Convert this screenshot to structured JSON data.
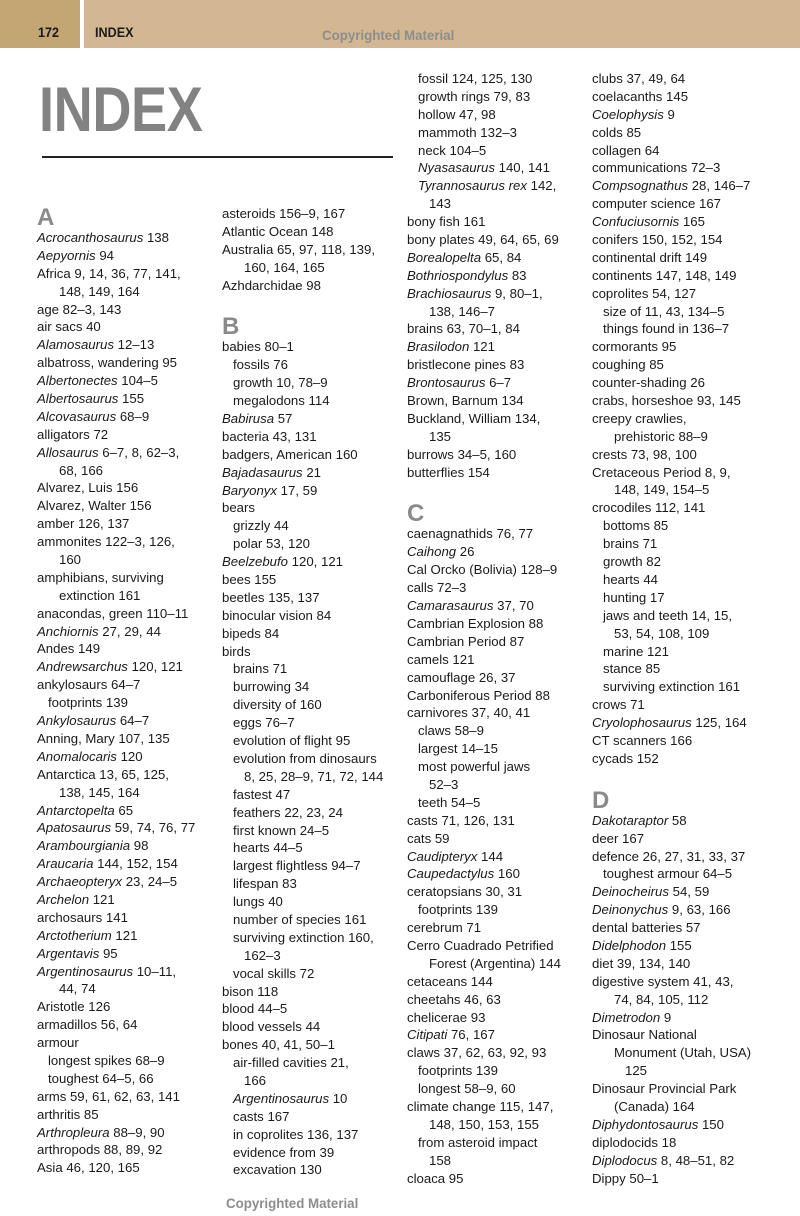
{
  "header": {
    "page_number": "172",
    "section": "INDEX",
    "watermark": "Copyrighted Material"
  },
  "title": "INDEX",
  "footer_watermark": "Copyrighted Material",
  "colors": {
    "band": "#d3b793",
    "band_left": "#c4a574",
    "title": "#828282",
    "letter": "#8a8a8a"
  },
  "columns": [
    {
      "lines": [
        {
          "letter": "A"
        },
        {
          "l": 0,
          "i": "Acrocanthosaurus",
          "t": " 138"
        },
        {
          "l": 0,
          "i": "Aepyornis",
          "t": " 94"
        },
        {
          "l": 0,
          "t": "Africa 9, 14, 36, 77, 141,"
        },
        {
          "l": 2,
          "t": "148, 149, 164"
        },
        {
          "l": 0,
          "t": "age 82–3, 143"
        },
        {
          "l": 0,
          "t": "air sacs 40"
        },
        {
          "l": 0,
          "i": "Alamosaurus",
          "t": " 12–13"
        },
        {
          "l": 0,
          "t": "albatross, wandering 95"
        },
        {
          "l": 0,
          "i": "Albertonectes",
          "t": " 104–5"
        },
        {
          "l": 0,
          "i": "Albertosaurus",
          "t": " 155"
        },
        {
          "l": 0,
          "i": "Alcovasaurus",
          "t": " 68–9"
        },
        {
          "l": 0,
          "t": "alligators 72"
        },
        {
          "l": 0,
          "i": "Allosaurus",
          "t": " 6–7, 8, 62–3,"
        },
        {
          "l": 2,
          "t": "68, 166"
        },
        {
          "l": 0,
          "t": "Alvarez, Luis 156"
        },
        {
          "l": 0,
          "t": "Alvarez, Walter 156"
        },
        {
          "l": 0,
          "t": "amber 126, 137"
        },
        {
          "l": 0,
          "t": "ammonites 122–3, 126,"
        },
        {
          "l": 2,
          "t": "160"
        },
        {
          "l": 0,
          "t": "amphibians, surviving"
        },
        {
          "l": 2,
          "t": "extinction 161"
        },
        {
          "l": 0,
          "t": "anacondas, green 110–11"
        },
        {
          "l": 0,
          "i": "Anchiornis",
          "t": " 27, 29, 44"
        },
        {
          "l": 0,
          "t": "Andes 149"
        },
        {
          "l": 0,
          "i": "Andrewsarchus",
          "t": " 120, 121"
        },
        {
          "l": 0,
          "t": "ankylosaurs 64–7"
        },
        {
          "l": 1,
          "t": "footprints 139"
        },
        {
          "l": 0,
          "i": "Ankylosaurus",
          "t": " 64–7"
        },
        {
          "l": 0,
          "t": "Anning, Mary 107, 135"
        },
        {
          "l": 0,
          "i": "Anomalocaris",
          "t": " 120"
        },
        {
          "l": 0,
          "t": "Antarctica 13, 65, 125,"
        },
        {
          "l": 2,
          "t": "138, 145, 164"
        },
        {
          "l": 0,
          "i": "Antarctopelta",
          "t": " 65"
        },
        {
          "l": 0,
          "i": "Apatosaurus",
          "t": " 59, 74, 76, 77"
        },
        {
          "l": 0,
          "i": "Arambourgiania",
          "t": " 98"
        },
        {
          "l": 0,
          "i": "Araucaria",
          "t": " 144, 152, 154"
        },
        {
          "l": 0,
          "i": "Archaeopteryx",
          "t": " 23, 24–5"
        },
        {
          "l": 0,
          "i": "Archelon",
          "t": " 121"
        },
        {
          "l": 0,
          "t": "archosaurs 141"
        },
        {
          "l": 0,
          "i": "Arctotherium",
          "t": " 121"
        },
        {
          "l": 0,
          "i": "Argentavis",
          "t": " 95"
        },
        {
          "l": 0,
          "i": "Argentinosaurus",
          "t": " 10–11,"
        },
        {
          "l": 2,
          "t": "44, 74"
        },
        {
          "l": 0,
          "t": "Aristotle 126"
        },
        {
          "l": 0,
          "t": "armadillos 56, 64"
        },
        {
          "l": 0,
          "t": "armour"
        },
        {
          "l": 1,
          "t": "longest spikes 68–9"
        },
        {
          "l": 1,
          "t": "toughest 64–5, 66"
        },
        {
          "l": 0,
          "t": "arms 59, 61, 62, 63, 141"
        },
        {
          "l": 0,
          "t": "arthritis 85"
        },
        {
          "l": 0,
          "i": "Arthropleura",
          "t": " 88–9, 90"
        },
        {
          "l": 0,
          "t": "arthropods 88, 89, 92"
        },
        {
          "l": 0,
          "t": "Asia 46, 120, 165"
        }
      ]
    },
    {
      "lines": [
        {
          "l": 0,
          "t": "asteroids 156–9, 167"
        },
        {
          "l": 0,
          "t": "Atlantic Ocean 148"
        },
        {
          "l": 0,
          "t": "Australia 65, 97, 118, 139,"
        },
        {
          "l": 2,
          "t": "160, 164, 165"
        },
        {
          "l": 0,
          "t": "Azhdarchidae 98"
        },
        {
          "letter": "B"
        },
        {
          "l": 0,
          "t": "babies 80–1"
        },
        {
          "l": 1,
          "t": "fossils 76"
        },
        {
          "l": 1,
          "t": "growth 10, 78–9"
        },
        {
          "l": 1,
          "t": "megalodons 114"
        },
        {
          "l": 0,
          "i": "Babirusa",
          "t": " 57"
        },
        {
          "l": 0,
          "t": "bacteria 43, 131"
        },
        {
          "l": 0,
          "t": "badgers, American 160"
        },
        {
          "l": 0,
          "i": "Bajadasaurus",
          "t": " 21"
        },
        {
          "l": 0,
          "i": "Baryonyx",
          "t": " 17, 59"
        },
        {
          "l": 0,
          "t": "bears"
        },
        {
          "l": 1,
          "t": "grizzly 44"
        },
        {
          "l": 1,
          "t": "polar 53, 120"
        },
        {
          "l": 0,
          "i": "Beelzebufo",
          "t": " 120, 121"
        },
        {
          "l": 0,
          "t": "bees 155"
        },
        {
          "l": 0,
          "t": "beetles 135, 137"
        },
        {
          "l": 0,
          "t": "binocular vision 84"
        },
        {
          "l": 0,
          "t": "bipeds 84"
        },
        {
          "l": 0,
          "t": "birds"
        },
        {
          "l": 1,
          "t": "brains 71"
        },
        {
          "l": 1,
          "t": "burrowing 34"
        },
        {
          "l": 1,
          "t": "diversity of 160"
        },
        {
          "l": 1,
          "t": "eggs 76–7"
        },
        {
          "l": 1,
          "t": "evolution of flight 95"
        },
        {
          "l": 1,
          "t": "evolution from dinosaurs"
        },
        {
          "l": 2,
          "t": "8, 25, 28–9, 71, 72, 144"
        },
        {
          "l": 1,
          "t": "fastest 47"
        },
        {
          "l": 1,
          "t": "feathers 22, 23, 24"
        },
        {
          "l": 1,
          "t": "first known 24–5"
        },
        {
          "l": 1,
          "t": "hearts 44–5"
        },
        {
          "l": 1,
          "t": "largest flightless 94–7"
        },
        {
          "l": 1,
          "t": "lifespan 83"
        },
        {
          "l": 1,
          "t": "lungs 40"
        },
        {
          "l": 1,
          "t": "number of species 161"
        },
        {
          "l": 1,
          "t": "surviving extinction 160,"
        },
        {
          "l": 2,
          "t": "162–3"
        },
        {
          "l": 1,
          "t": "vocal skills 72"
        },
        {
          "l": 0,
          "t": "bison 118"
        },
        {
          "l": 0,
          "t": "blood 44–5"
        },
        {
          "l": 0,
          "t": "blood vessels 44"
        },
        {
          "l": 0,
          "t": "bones 40, 41, 50–1"
        },
        {
          "l": 1,
          "t": "air-filled cavities 21,"
        },
        {
          "l": 2,
          "t": "166"
        },
        {
          "l": 1,
          "i": "Argentinosaurus",
          "t": " 10"
        },
        {
          "l": 1,
          "t": "casts 167"
        },
        {
          "l": 1,
          "t": "in coprolites 136, 137"
        },
        {
          "l": 1,
          "t": "evidence from 39"
        },
        {
          "l": 1,
          "t": "excavation 130"
        }
      ]
    },
    {
      "lines": [
        {
          "l": 1,
          "t": "fossil 124, 125, 130"
        },
        {
          "l": 1,
          "t": "growth rings 79, 83"
        },
        {
          "l": 1,
          "t": "hollow 47, 98"
        },
        {
          "l": 1,
          "t": "mammoth 132–3"
        },
        {
          "l": 1,
          "t": "neck 104–5"
        },
        {
          "l": 1,
          "i": "Nyasasaurus",
          "t": " 140, 141"
        },
        {
          "l": 1,
          "i": "Tyrannosaurus rex",
          "t": " 142,"
        },
        {
          "l": 2,
          "t": "143"
        },
        {
          "l": 0,
          "t": "bony fish 161"
        },
        {
          "l": 0,
          "t": "bony plates 49, 64, 65, 69"
        },
        {
          "l": 0,
          "i": "Borealopelta",
          "t": " 65, 84"
        },
        {
          "l": 0,
          "i": "Bothriospondylus",
          "t": " 83"
        },
        {
          "l": 0,
          "i": "Brachiosaurus",
          "t": " 9, 80–1,"
        },
        {
          "l": 2,
          "t": "138, 146–7"
        },
        {
          "l": 0,
          "t": "brains 63, 70–1, 84"
        },
        {
          "l": 0,
          "i": "Brasilodon",
          "t": " 121"
        },
        {
          "l": 0,
          "t": "bristlecone pines 83"
        },
        {
          "l": 0,
          "i": "Brontosaurus",
          "t": " 6–7"
        },
        {
          "l": 0,
          "t": "Brown, Barnum 134"
        },
        {
          "l": 0,
          "t": "Buckland, William 134,"
        },
        {
          "l": 2,
          "t": "135"
        },
        {
          "l": 0,
          "t": "burrows 34–5, 160"
        },
        {
          "l": 0,
          "t": "butterflies 154"
        },
        {
          "letter": "C"
        },
        {
          "l": 0,
          "t": "caenagnathids 76, 77"
        },
        {
          "l": 0,
          "i": "Caihong",
          "t": " 26"
        },
        {
          "l": 0,
          "t": "Cal Orcko (Bolivia) 128–9"
        },
        {
          "l": 0,
          "t": "calls 72–3"
        },
        {
          "l": 0,
          "i": "Camarasaurus",
          "t": " 37, 70"
        },
        {
          "l": 0,
          "t": "Cambrian Explosion 88"
        },
        {
          "l": 0,
          "t": "Cambrian Period 87"
        },
        {
          "l": 0,
          "t": "camels 121"
        },
        {
          "l": 0,
          "t": "camouflage 26, 37"
        },
        {
          "l": 0,
          "t": "Carboniferous Period 88"
        },
        {
          "l": 0,
          "t": "carnivores 37, 40, 41"
        },
        {
          "l": 1,
          "t": "claws 58–9"
        },
        {
          "l": 1,
          "t": "largest 14–15"
        },
        {
          "l": 1,
          "t": "most powerful jaws"
        },
        {
          "l": 2,
          "t": "52–3"
        },
        {
          "l": 1,
          "t": "teeth 54–5"
        },
        {
          "l": 0,
          "t": "casts 71, 126, 131"
        },
        {
          "l": 0,
          "t": "cats 59"
        },
        {
          "l": 0,
          "i": "Caudipteryx",
          "t": " 144"
        },
        {
          "l": 0,
          "i": "Caupedactylus",
          "t": " 160"
        },
        {
          "l": 0,
          "t": "ceratopsians 30, 31"
        },
        {
          "l": 1,
          "t": "footprints 139"
        },
        {
          "l": 0,
          "t": "cerebrum 71"
        },
        {
          "l": 0,
          "t": "Cerro Cuadrado Petrified"
        },
        {
          "l": 2,
          "t": "Forest (Argentina) 144"
        },
        {
          "l": 0,
          "t": "cetaceans 144"
        },
        {
          "l": 0,
          "t": "cheetahs 46, 63"
        },
        {
          "l": 0,
          "t": "chelicerae 93"
        },
        {
          "l": 0,
          "i": "Citipati",
          "t": " 76, 167"
        },
        {
          "l": 0,
          "t": "claws 37, 62, 63, 92, 93"
        },
        {
          "l": 1,
          "t": "footprints 139"
        },
        {
          "l": 1,
          "t": "longest 58–9, 60"
        },
        {
          "l": 0,
          "t": "climate change 115, 147,"
        },
        {
          "l": 2,
          "t": "148, 150, 153, 155"
        },
        {
          "l": 1,
          "t": "from asteroid impact"
        },
        {
          "l": 2,
          "t": "158"
        },
        {
          "l": 0,
          "t": "cloaca 95"
        }
      ]
    },
    {
      "lines": [
        {
          "l": 0,
          "t": "clubs 37, 49, 64"
        },
        {
          "l": 0,
          "t": "coelacanths 145"
        },
        {
          "l": 0,
          "i": "Coelophysis",
          "t": " 9"
        },
        {
          "l": 0,
          "t": "colds 85"
        },
        {
          "l": 0,
          "t": "collagen 64"
        },
        {
          "l": 0,
          "t": "communications 72–3"
        },
        {
          "l": 0,
          "i": "Compsognathus",
          "t": " 28, 146–7"
        },
        {
          "l": 0,
          "t": "computer science 167"
        },
        {
          "l": 0,
          "i": "Confuciusornis",
          "t": " 165"
        },
        {
          "l": 0,
          "t": "conifers 150, 152, 154"
        },
        {
          "l": 0,
          "t": "continental drift 149"
        },
        {
          "l": 0,
          "t": "continents 147, 148, 149"
        },
        {
          "l": 0,
          "t": "coprolites 54, 127"
        },
        {
          "l": 1,
          "t": "size of 11, 43, 134–5"
        },
        {
          "l": 1,
          "t": "things found in 136–7"
        },
        {
          "l": 0,
          "t": "cormorants 95"
        },
        {
          "l": 0,
          "t": "coughing 85"
        },
        {
          "l": 0,
          "t": "counter-shading 26"
        },
        {
          "l": 0,
          "t": "crabs, horseshoe 93, 145"
        },
        {
          "l": 0,
          "t": "creepy crawlies,"
        },
        {
          "l": 2,
          "t": "prehistoric 88–9"
        },
        {
          "l": 0,
          "t": "crests 73, 98, 100"
        },
        {
          "l": 0,
          "t": "Cretaceous Period 8, 9,"
        },
        {
          "l": 2,
          "t": "148, 149, 154–5"
        },
        {
          "l": 0,
          "t": "crocodiles 112, 141"
        },
        {
          "l": 1,
          "t": "bottoms 85"
        },
        {
          "l": 1,
          "t": "brains 71"
        },
        {
          "l": 1,
          "t": "growth 82"
        },
        {
          "l": 1,
          "t": "hearts 44"
        },
        {
          "l": 1,
          "t": "hunting 17"
        },
        {
          "l": 1,
          "t": "jaws and teeth 14, 15,"
        },
        {
          "l": 2,
          "t": "53, 54, 108, 109"
        },
        {
          "l": 1,
          "t": "marine 121"
        },
        {
          "l": 1,
          "t": "stance 85"
        },
        {
          "l": 1,
          "t": "surviving extinction 161"
        },
        {
          "l": 0,
          "t": "crows 71"
        },
        {
          "l": 0,
          "i": "Cryolophosaurus",
          "t": " 125, 164"
        },
        {
          "l": 0,
          "t": "CT scanners 166"
        },
        {
          "l": 0,
          "t": "cycads 152"
        },
        {
          "letter": "D"
        },
        {
          "l": 0,
          "i": "Dakotaraptor",
          "t": " 58"
        },
        {
          "l": 0,
          "t": "deer 167"
        },
        {
          "l": 0,
          "t": "defence 26, 27, 31, 33, 37"
        },
        {
          "l": 1,
          "t": "toughest armour 64–5"
        },
        {
          "l": 0,
          "i": "Deinocheirus",
          "t": " 54, 59"
        },
        {
          "l": 0,
          "i": "Deinonychus",
          "t": " 9, 63, 166"
        },
        {
          "l": 0,
          "t": "dental batteries 57"
        },
        {
          "l": 0,
          "i": "Didelphodon",
          "t": " 155"
        },
        {
          "l": 0,
          "t": "diet 39, 134, 140"
        },
        {
          "l": 0,
          "t": "digestive system 41, 43,"
        },
        {
          "l": 2,
          "t": "74, 84, 105, 112"
        },
        {
          "l": 0,
          "i": "Dimetrodon",
          "t": " 9"
        },
        {
          "l": 0,
          "t": "Dinosaur National"
        },
        {
          "l": 2,
          "t": "Monument (Utah, USA)"
        },
        {
          "l": 3,
          "t": "125"
        },
        {
          "l": 0,
          "t": "Dinosaur Provincial Park"
        },
        {
          "l": 2,
          "t": "(Canada) 164"
        },
        {
          "l": 0,
          "i": "Diphydontosaurus",
          "t": " 150"
        },
        {
          "l": 0,
          "t": "diplodocids 18"
        },
        {
          "l": 0,
          "i": "Diplodocus",
          "t": " 8, 48–51, 82"
        },
        {
          "l": 0,
          "t": "Dippy 50–1"
        }
      ]
    }
  ]
}
